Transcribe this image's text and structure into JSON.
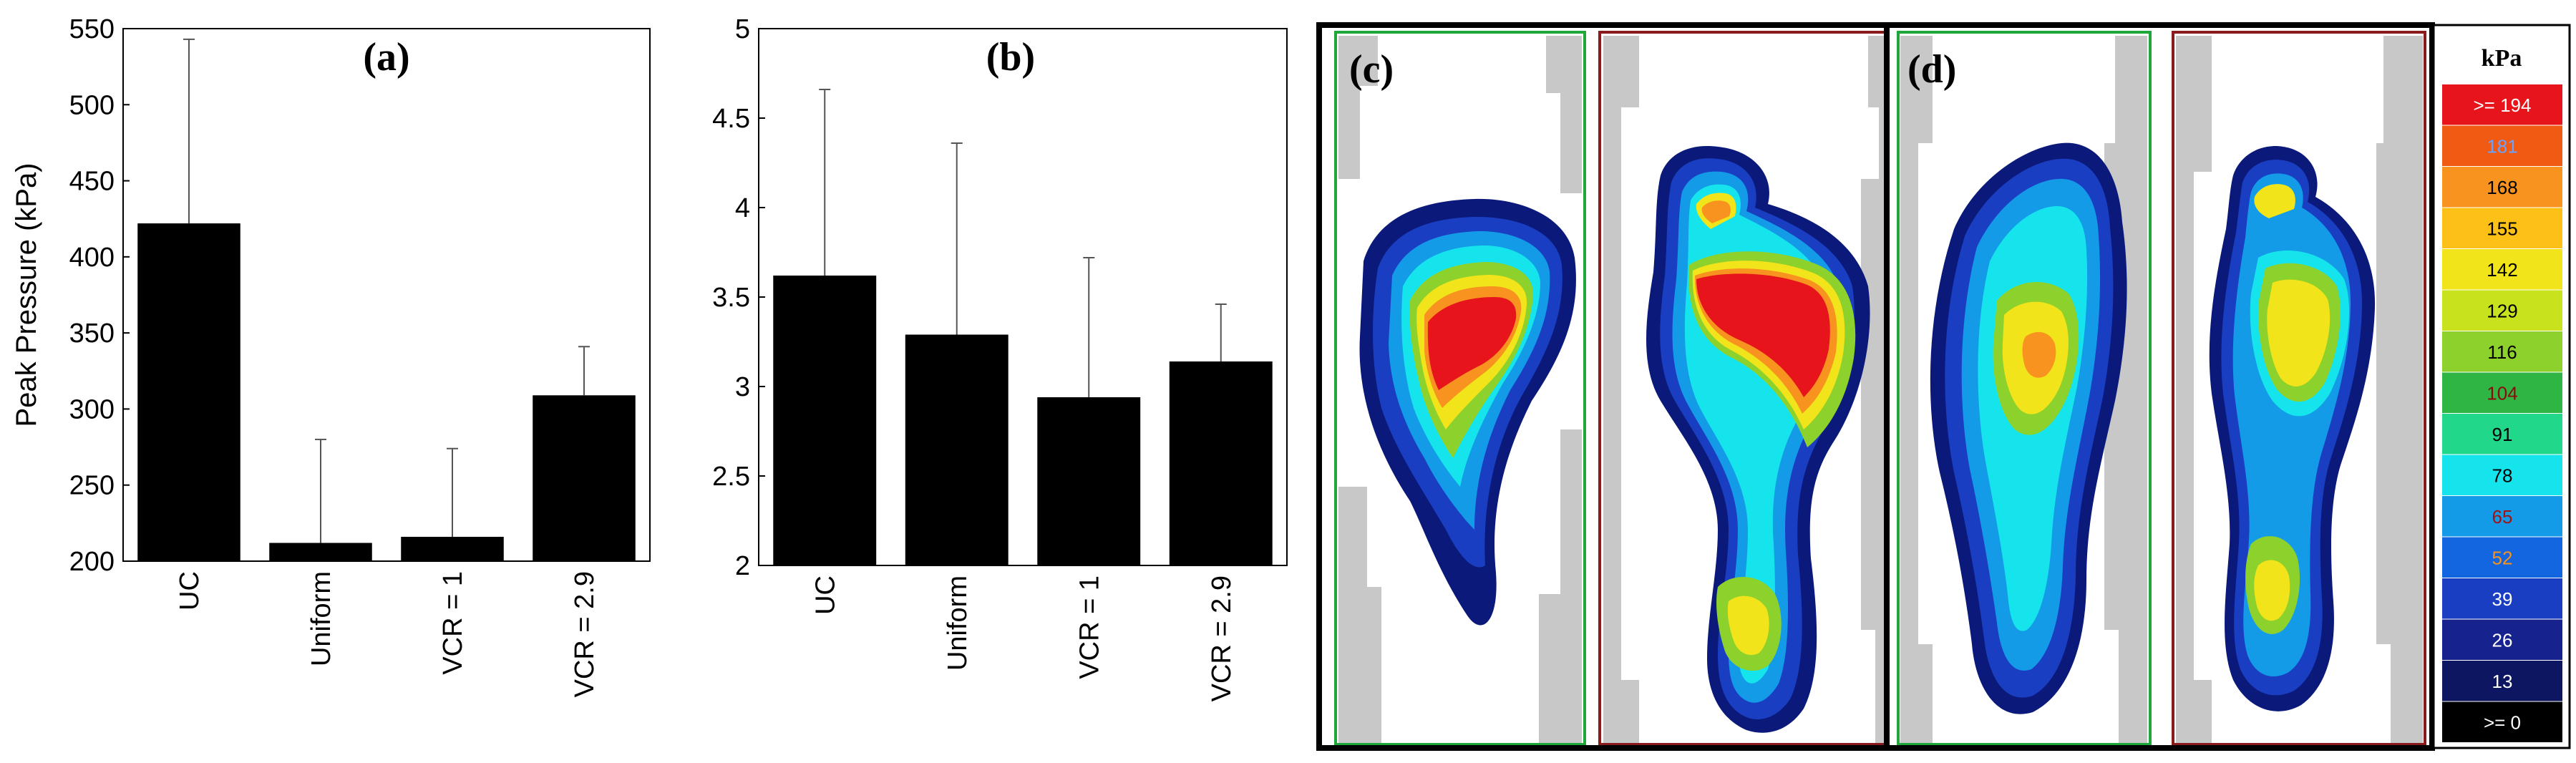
{
  "chart_data": [
    {
      "type": "bar",
      "panel": "(a)",
      "ylabel": "Peak Pressure (kPa)",
      "xlabel": "",
      "categories": [
        "UC",
        "Uniform",
        "VCR = 1",
        "VCR = 2.9"
      ],
      "values": [
        422,
        212,
        216,
        309
      ],
      "errors": [
        121,
        68,
        58,
        32
      ],
      "ylim": [
        200,
        550
      ],
      "yticks": [
        "200",
        "250",
        "300",
        "350",
        "400",
        "450",
        "500",
        "550"
      ],
      "grid": false
    },
    {
      "type": "bar",
      "panel": "(b)",
      "ylabel": "",
      "xlabel": "",
      "categories": [
        "UC",
        "Uniform",
        "VCR = 1",
        "VCR = 2.9"
      ],
      "values": [
        3.62,
        3.29,
        2.94,
        3.14
      ],
      "errors": [
        1.04,
        1.07,
        0.78,
        0.32
      ],
      "ylim": [
        2,
        5
      ],
      "yticks": [
        "2",
        "2.5",
        "3",
        "3.5",
        "4",
        "4.5",
        "5"
      ],
      "grid": false
    }
  ],
  "pressure_maps": {
    "panel_c": "(c)",
    "panel_d": "(d)"
  },
  "colorbar": {
    "title": "kPa",
    "labels": [
      ">= 194",
      "181",
      "168",
      "155",
      "142",
      "129",
      "116",
      "104",
      "91",
      "78",
      "65",
      "52",
      "39",
      "26",
      "13",
      ">= 0"
    ],
    "colors": [
      "#e8141c",
      "#f05a12",
      "#f7931e",
      "#fcc016",
      "#f2e41a",
      "#c8e21e",
      "#8dd12c",
      "#2fb543",
      "#20d78a",
      "#16e4ec",
      "#149be8",
      "#1366df",
      "#1a3ec2",
      "#16238f",
      "#0d1660",
      "#000000"
    ],
    "label_colors": [
      "#ffffff",
      "#6aa2ff",
      "#000000",
      "#000000",
      "#000000",
      "#000000",
      "#000000",
      "#8a0b0b",
      "#000000",
      "#000000",
      "#a01414",
      "#f7931e",
      "#ffffff",
      "#ffffff",
      "#ffffff",
      "#ffffff"
    ]
  }
}
